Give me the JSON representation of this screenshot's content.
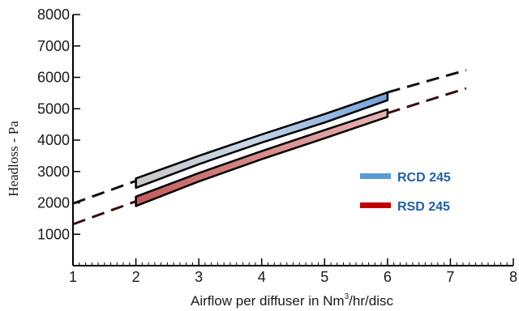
{
  "chart_data": {
    "type": "line",
    "xlabel": "Airflow per diffuser in Nm",
    "xlabel_superscript": "3",
    "xlabel_suffix": "/hr/disc",
    "ylabel": "Headloss - Pa",
    "xlim": [
      1,
      8
    ],
    "ylim": [
      0,
      8000
    ],
    "x_ticks": [
      1,
      2,
      3,
      4,
      5,
      6,
      7,
      8
    ],
    "y_ticks": [
      1000,
      2000,
      3000,
      4000,
      5000,
      6000,
      7000,
      8000
    ],
    "legend_position": "center-right",
    "series": [
      {
        "name": "RCD 245",
        "color": "#5b9bd5",
        "band_x": [
          2,
          3,
          4,
          5,
          6
        ],
        "band_upper": [
          2780,
          3500,
          4180,
          4830,
          5520
        ],
        "band_lower": [
          2480,
          3230,
          3920,
          4560,
          5270
        ],
        "extrapolated_left": {
          "x": [
            1,
            2
          ],
          "y": [
            1980,
            2700
          ]
        },
        "extrapolated_right": {
          "x": [
            6,
            7.25
          ],
          "y": [
            5520,
            6230
          ]
        }
      },
      {
        "name": "RSD 245",
        "color": "#c00000",
        "band_x": [
          2,
          3,
          4,
          5,
          6
        ],
        "band_upper": [
          2200,
          2950,
          3650,
          4320,
          4980
        ],
        "band_lower": [
          1900,
          2680,
          3390,
          4060,
          4740
        ],
        "extrapolated_left": {
          "x": [
            1,
            2
          ],
          "y": [
            1320,
            2050
          ]
        },
        "extrapolated_right": {
          "x": [
            6,
            7.25
          ],
          "y": [
            4860,
            5650
          ]
        }
      }
    ]
  }
}
